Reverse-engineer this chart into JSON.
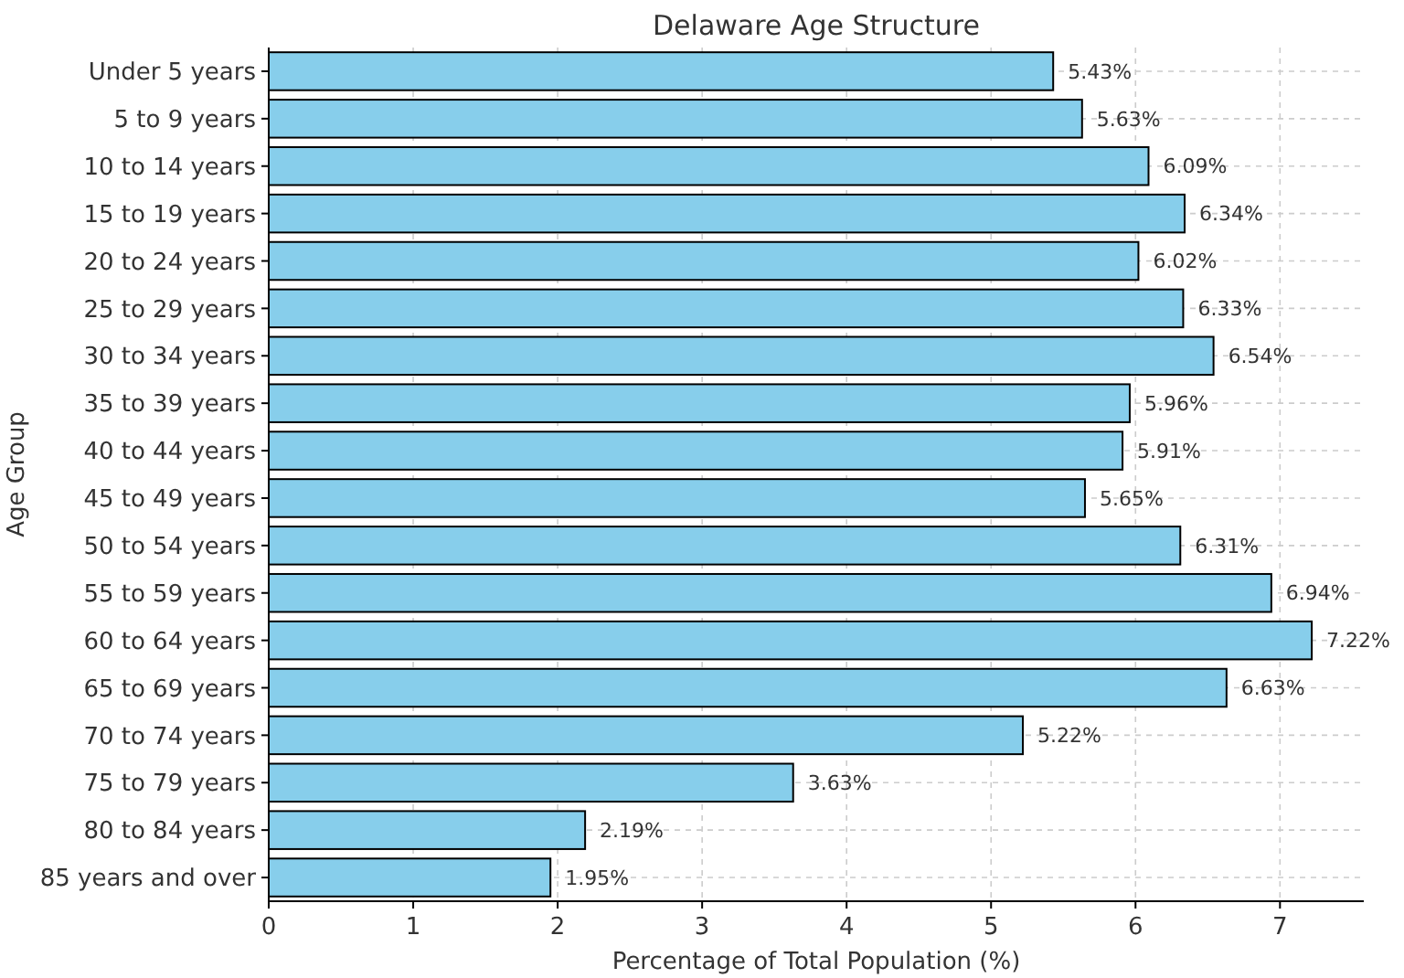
{
  "chart_data": {
    "type": "bar",
    "title": "Delaware Age Structure",
    "xlabel": "Percentage of Total Population (%)",
    "ylabel": "Age Group",
    "orientation": "horizontal",
    "categories": [
      "Under 5 years",
      "5 to 9 years",
      "10 to 14 years",
      "15 to 19 years",
      "20 to 24 years",
      "25 to 29 years",
      "30 to 34 years",
      "35 to 39 years",
      "40 to 44 years",
      "45 to 49 years",
      "50 to 54 years",
      "55 to 59 years",
      "60 to 64 years",
      "65 to 69 years",
      "70 to 74 years",
      "75 to 79 years",
      "80 to 84 years",
      "85 years and over"
    ],
    "values": [
      5.43,
      5.63,
      6.09,
      6.34,
      6.02,
      6.33,
      6.54,
      5.96,
      5.91,
      5.65,
      6.31,
      6.94,
      7.22,
      6.63,
      5.22,
      3.63,
      2.19,
      1.95
    ],
    "value_labels": [
      "5.43%",
      "5.63%",
      "6.09%",
      "6.34%",
      "6.02%",
      "6.33%",
      "6.54%",
      "5.96%",
      "5.91%",
      "5.65%",
      "6.31%",
      "6.94%",
      "7.22%",
      "6.63%",
      "5.22%",
      "3.63%",
      "2.19%",
      "1.95%"
    ],
    "color": "#87ceeb",
    "xlim": [
      0,
      7.58
    ],
    "xticks": [
      0,
      1,
      2,
      3,
      4,
      5,
      6,
      7
    ],
    "grid": true
  }
}
